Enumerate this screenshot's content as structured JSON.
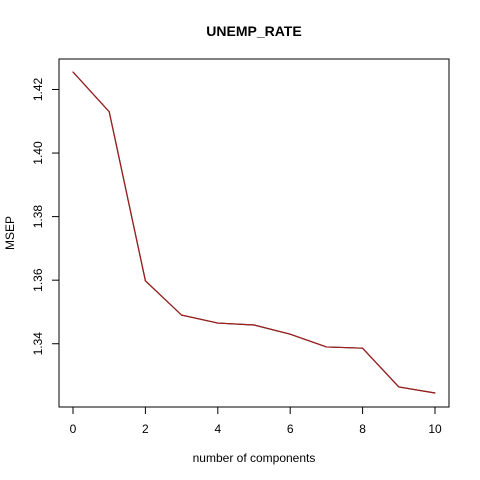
{
  "chart_data": {
    "type": "line",
    "title": "UNEMP_RATE",
    "xlabel": "number of components",
    "ylabel": "MSEP",
    "x": [
      0,
      1,
      2,
      3,
      4,
      5,
      6,
      7,
      8,
      9,
      10
    ],
    "series": [
      {
        "values": [
          1.4255,
          1.413,
          1.3598,
          1.349,
          1.3465,
          1.3459,
          1.343,
          1.339,
          1.3386,
          1.3264,
          1.3245
        ],
        "colors": [
          "#000000",
          "#b22222"
        ]
      }
    ],
    "xlim": [
      0,
      10
    ],
    "ylim": [
      1.3245,
      1.4255
    ],
    "xticks": [
      0,
      2,
      4,
      6,
      8,
      10
    ],
    "xtick_labels": [
      "0",
      "2",
      "4",
      "6",
      "8",
      "10"
    ],
    "yticks": [
      1.34,
      1.36,
      1.38,
      1.4,
      1.42
    ],
    "ytick_labels": [
      "1.34",
      "1.36",
      "1.38",
      "1.40",
      "1.42"
    ],
    "grid": false
  }
}
